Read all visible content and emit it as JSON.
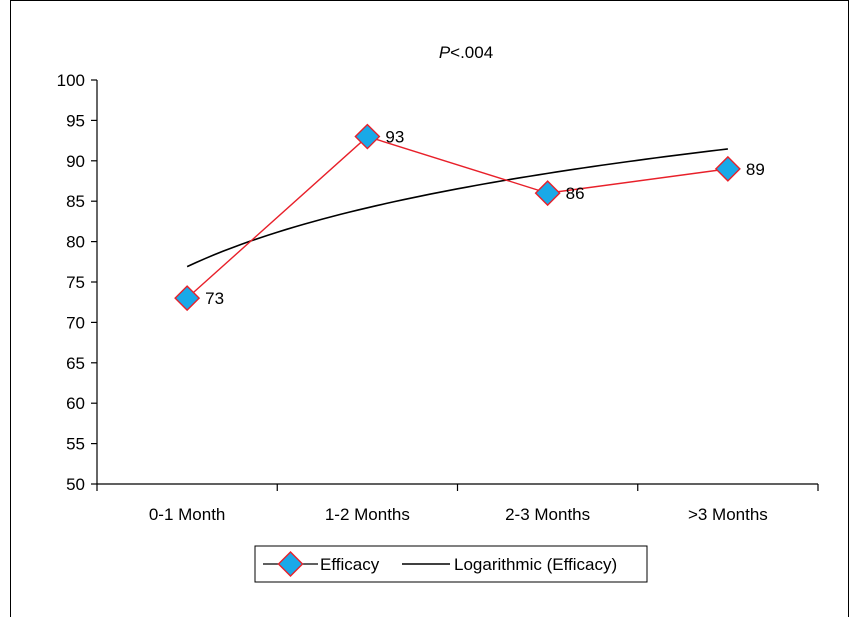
{
  "chart_data": {
    "type": "line",
    "title": "P<.004",
    "title_italic_part": "P",
    "title_rest": "<.004",
    "categories": [
      "0-1 Month",
      "1-2 Months",
      "2-3 Months",
      ">3 Months"
    ],
    "series": [
      {
        "name": "Efficacy",
        "values": [
          73,
          93,
          86,
          89
        ],
        "labels": [
          "73",
          "93",
          "86",
          "89"
        ],
        "color": "#e8202a",
        "marker_fill": "#19a9e8",
        "marker": "diamond"
      }
    ],
    "trendline": {
      "name": "Logarithmic (Efficacy)",
      "type": "logarithmic",
      "color": "#000000"
    },
    "ylim": [
      50,
      100
    ],
    "yticks": [
      50,
      55,
      60,
      65,
      70,
      75,
      80,
      85,
      90,
      95,
      100
    ],
    "xlabel": "",
    "ylabel": "",
    "grid": false,
    "legend_position": "bottom"
  }
}
